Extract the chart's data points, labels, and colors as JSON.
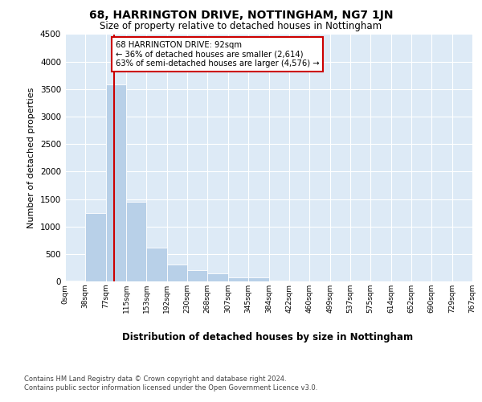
{
  "title": "68, HARRINGTON DRIVE, NOTTINGHAM, NG7 1JN",
  "subtitle": "Size of property relative to detached houses in Nottingham",
  "xlabel": "Distribution of detached houses by size in Nottingham",
  "ylabel": "Number of detached properties",
  "bin_labels": [
    "0sqm",
    "38sqm",
    "77sqm",
    "115sqm",
    "153sqm",
    "192sqm",
    "230sqm",
    "268sqm",
    "307sqm",
    "345sqm",
    "384sqm",
    "422sqm",
    "460sqm",
    "499sqm",
    "537sqm",
    "575sqm",
    "614sqm",
    "652sqm",
    "690sqm",
    "729sqm",
    "767sqm"
  ],
  "bar_values": [
    10,
    1250,
    3580,
    1450,
    620,
    310,
    200,
    150,
    80,
    80,
    10,
    0,
    0,
    0,
    8,
    0,
    0,
    0,
    0,
    0
  ],
  "bar_color": "#b8d0e8",
  "property_line_x": 92,
  "property_line_color": "#cc0000",
  "annotation_text": "68 HARRINGTON DRIVE: 92sqm\n← 36% of detached houses are smaller (2,614)\n63% of semi-detached houses are larger (4,576) →",
  "annotation_box_facecolor": "#ffffff",
  "annotation_box_edgecolor": "#cc0000",
  "ylim": [
    0,
    4500
  ],
  "yticks": [
    0,
    500,
    1000,
    1500,
    2000,
    2500,
    3000,
    3500,
    4000,
    4500
  ],
  "plot_bg_color": "#ddeaf6",
  "grid_color": "#ffffff",
  "footer_text": "Contains HM Land Registry data © Crown copyright and database right 2024.\nContains public sector information licensed under the Open Government Licence v3.0.",
  "bin_edges": [
    0,
    38,
    77,
    115,
    153,
    192,
    230,
    268,
    307,
    345,
    384,
    422,
    460,
    499,
    537,
    575,
    614,
    652,
    690,
    729,
    767
  ]
}
